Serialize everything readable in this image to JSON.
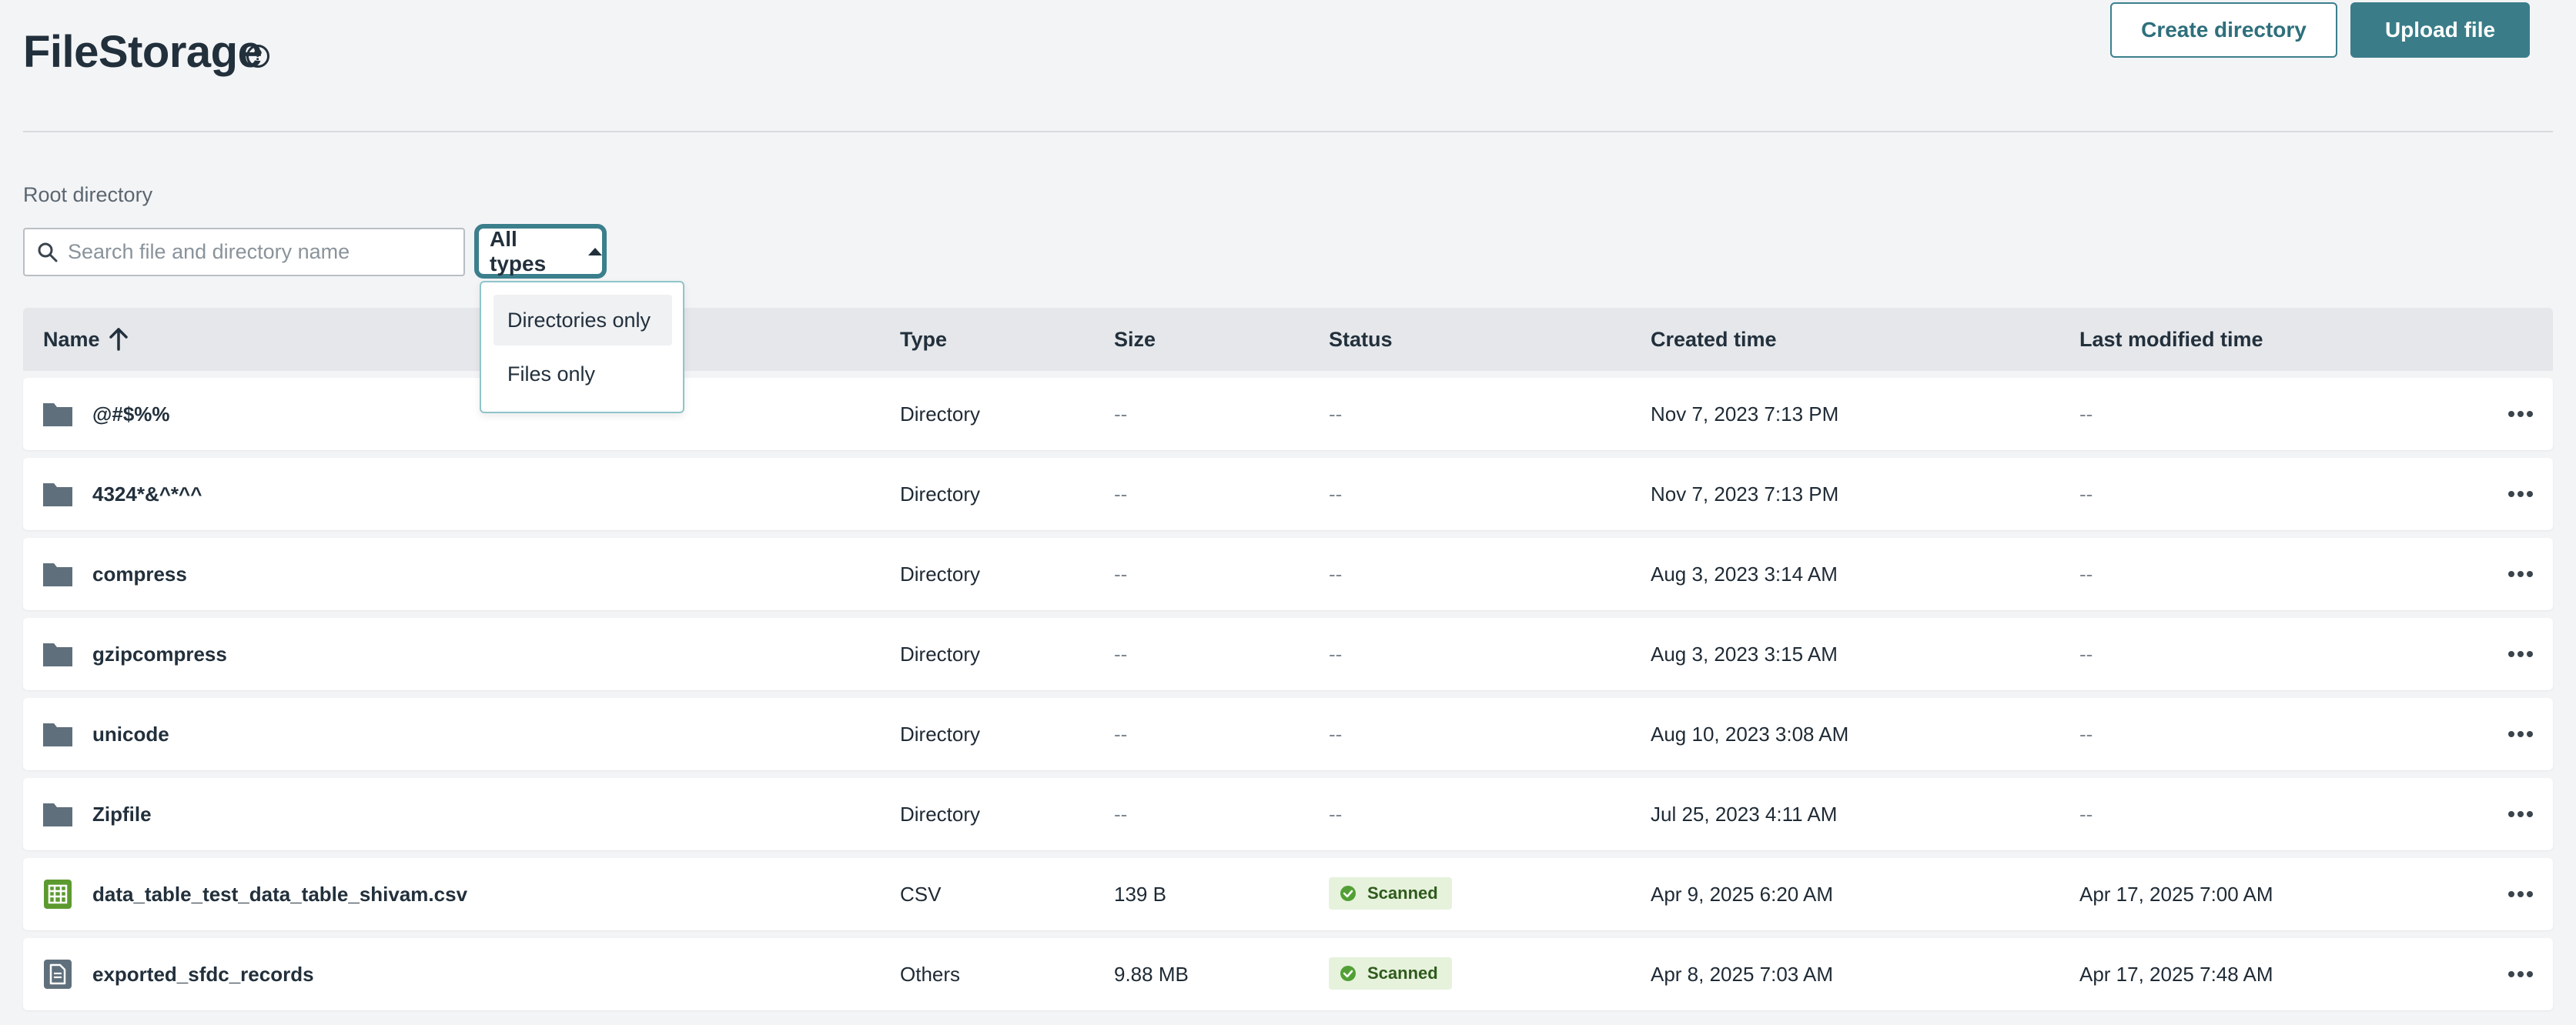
{
  "header": {
    "title": "FileStorage",
    "help_icon": "?",
    "create_label": "Create directory",
    "upload_label": "Upload file"
  },
  "breadcrumb": "Root directory",
  "search": {
    "placeholder": "Search file and directory name",
    "value": ""
  },
  "filter": {
    "label": "All types"
  },
  "menu": {
    "items": [
      "Directories only",
      "Files only"
    ]
  },
  "table": {
    "columns": [
      "Name",
      "Type",
      "Size",
      "Status",
      "Created time",
      "Last modified time"
    ],
    "rows": [
      {
        "icon": "folder-icon",
        "name": "@#$%%",
        "type": "Directory",
        "size": "--",
        "status": "--",
        "created": "Nov 7, 2023 7:13 PM",
        "modified": "--"
      },
      {
        "icon": "folder-icon",
        "name": "4324*&^*^^",
        "type": "Directory",
        "size": "--",
        "status": "--",
        "created": "Nov 7, 2023 7:13 PM",
        "modified": "--"
      },
      {
        "icon": "folder-icon",
        "name": "compress",
        "type": "Directory",
        "size": "--",
        "status": "--",
        "created": "Aug 3, 2023 3:14 AM",
        "modified": "--"
      },
      {
        "icon": "folder-icon",
        "name": "gzipcompress",
        "type": "Directory",
        "size": "--",
        "status": "--",
        "created": "Aug 3, 2023 3:15 AM",
        "modified": "--"
      },
      {
        "icon": "folder-icon",
        "name": "unicode",
        "type": "Directory",
        "size": "--",
        "status": "--",
        "created": "Aug 10, 2023 3:08 AM",
        "modified": "--"
      },
      {
        "icon": "folder-icon",
        "name": "Zipfile",
        "type": "Directory",
        "size": "--",
        "status": "--",
        "created": "Jul 25, 2023 4:11 AM",
        "modified": "--"
      },
      {
        "icon": "csv-file-icon",
        "name": "data_table_test_data_table_shivam.csv",
        "type": "CSV",
        "size": "139 B",
        "status": "Scanned",
        "created": "Apr 9, 2025 6:20 AM",
        "modified": "Apr 17, 2025 7:00 AM"
      },
      {
        "icon": "document-file-icon",
        "name": "exported_sfdc_records",
        "type": "Others",
        "size": "9.88 MB",
        "status": "Scanned",
        "created": "Apr 8, 2025 7:03 AM",
        "modified": "Apr 17, 2025 7:48 AM"
      }
    ]
  },
  "colors": {
    "accent": "#3a7d89",
    "background": "#f3f4f6",
    "folder": "#5f6f7c",
    "csv": "#5c9a2f",
    "badge_bg": "#e6f2dc",
    "badge_check": "#52a035"
  }
}
